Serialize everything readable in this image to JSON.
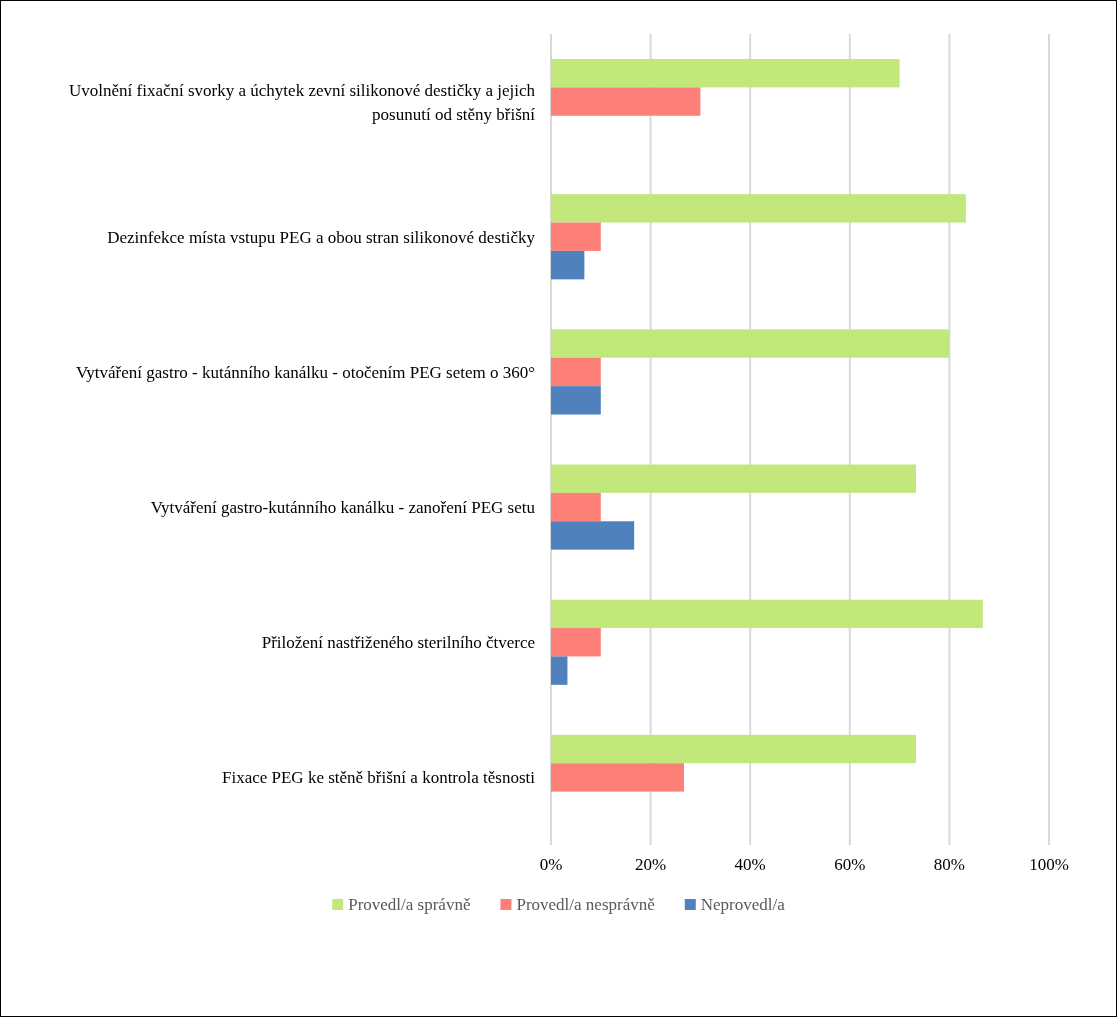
{
  "chart_data": {
    "type": "bar",
    "orientation": "horizontal",
    "categories": [
      "Uvolnění fixační svorky a úchytek zevní silikonové destičky a jejich posunutí od stěny břišní",
      "Dezinfekce místa vstupu PEG a obou stran silikonové destičky",
      "Vytváření gastro - kutánního kanálku - otočením PEG setem o 360°",
      "Vytváření gastro-kutánního kanálku - zanoření PEG setu",
      "Přiložení nastřiženého sterilního čtverce",
      "Fixace PEG ke stěně břišní a kontrola těsnosti"
    ],
    "series": [
      {
        "name": "Provedl/a správně",
        "color": "#c2e87c",
        "values": [
          70,
          83.3,
          80,
          73.3,
          86.7,
          73.3
        ]
      },
      {
        "name": "Provedl/a nesprávně",
        "color": "#fc8078",
        "values": [
          30,
          10,
          10,
          10,
          10,
          26.7
        ]
      },
      {
        "name": "Neprovedl/a",
        "color": "#4f81bd",
        "values": [
          null,
          6.7,
          10,
          16.7,
          3.3,
          null
        ]
      }
    ],
    "xlim": [
      0,
      100
    ],
    "xticks": [
      {
        "value": 0,
        "label": "0%"
      },
      {
        "value": 20,
        "label": "20%"
      },
      {
        "value": 40,
        "label": "40%"
      },
      {
        "value": 60,
        "label": "60%"
      },
      {
        "value": 80,
        "label": "80%"
      },
      {
        "value": 100,
        "label": "100%"
      }
    ],
    "grid": "x",
    "legend": "bottom"
  }
}
